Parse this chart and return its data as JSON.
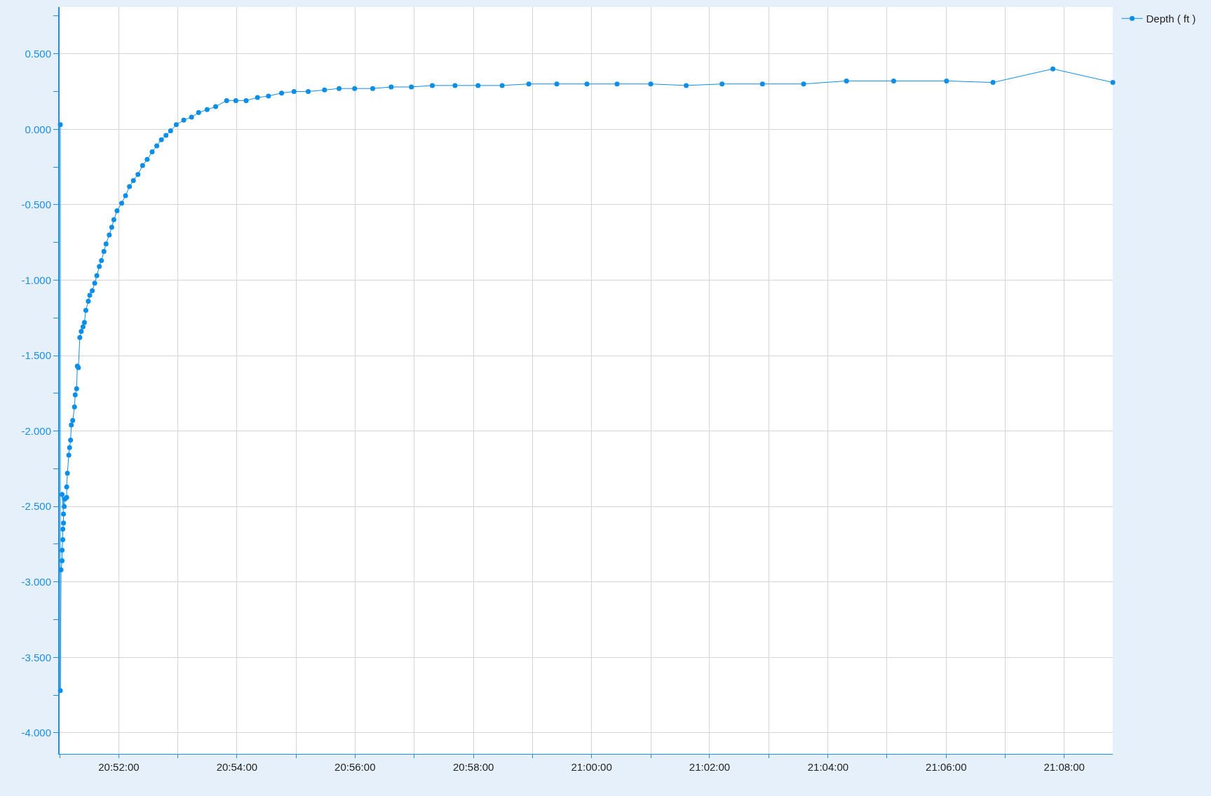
{
  "chart_data": {
    "type": "line",
    "marker": "circle",
    "line_style": "solid",
    "grid": true,
    "legend": "top right",
    "x": [
      20.8502,
      20.8502,
      20.8504,
      20.8507,
      20.8507,
      20.8509,
      20.8509,
      20.8511,
      20.8511,
      20.8507,
      20.8513,
      20.8515,
      20.852,
      20.852,
      20.8522,
      20.8526,
      20.8528,
      20.8531,
      20.8533,
      20.8537,
      20.8542,
      20.8544,
      20.8548,
      20.855,
      20.8553,
      20.8557,
      20.8561,
      20.8566,
      20.857,
      20.8574,
      20.8581,
      20.8585,
      20.8592,
      20.8599,
      20.8605,
      20.8612,
      20.8618,
      20.8625,
      20.8631,
      20.864,
      20.8647,
      20.8653,
      20.8662,
      20.8675,
      20.8686,
      20.8697,
      20.8708,
      20.8721,
      20.8734,
      20.8747,
      20.8761,
      20.8774,
      20.8787,
      20.88,
      20.8813,
      20.8829,
      20.885,
      20.8872,
      20.8892,
      20.8916,
      20.894,
      20.8971,
      20.8997,
      20.9026,
      20.9058,
      20.9089,
      20.9126,
      20.9161,
      20.9201,
      20.9247,
      20.9288,
      20.9332,
      20.9383,
      20.9435,
      20.9492,
      20.9551,
      20.9615,
      20.968,
      20.9748,
      20.9823,
      20.9902,
      20.9987,
      21.0072,
      21.0167,
      21.0267,
      21.0368,
      21.0482,
      21.0598,
      21.0719,
      21.0852,
      21.1001,
      21.1132,
      21.1301,
      21.147
    ],
    "series": [
      {
        "name": "Depth ( ft )",
        "color": "#0a8ee8",
        "values": [
          0.03,
          -3.72,
          -2.92,
          -2.86,
          -2.79,
          -2.72,
          -2.65,
          -2.61,
          -2.55,
          -2.42,
          -2.5,
          -2.45,
          -2.44,
          -2.37,
          -2.28,
          -2.16,
          -2.11,
          -2.06,
          -1.96,
          -1.93,
          -1.84,
          -1.76,
          -1.72,
          -1.57,
          -1.58,
          -1.38,
          -1.34,
          -1.31,
          -1.28,
          -1.2,
          -1.14,
          -1.1,
          -1.07,
          -1.02,
          -0.97,
          -0.91,
          -0.87,
          -0.81,
          -0.76,
          -0.7,
          -0.65,
          -0.6,
          -0.54,
          -0.49,
          -0.44,
          -0.38,
          -0.34,
          -0.3,
          -0.24,
          -0.2,
          -0.15,
          -0.11,
          -0.07,
          -0.04,
          -0.01,
          0.03,
          0.06,
          0.08,
          0.11,
          0.13,
          0.15,
          0.19,
          0.19,
          0.19,
          0.21,
          0.22,
          0.24,
          0.25,
          0.25,
          0.26,
          0.27,
          0.27,
          0.27,
          0.28,
          0.28,
          0.29,
          0.29,
          0.29,
          0.29,
          0.3,
          0.3,
          0.3,
          0.3,
          0.3,
          0.29,
          0.3,
          0.3,
          0.3,
          0.32,
          0.32,
          0.32,
          0.31,
          0.4,
          0.31
        ]
      }
    ],
    "xlim": [
      20.85,
      21.147
    ],
    "xticks": [
      {
        "value": 20.85,
        "label": null
      },
      {
        "value": 20.8667,
        "label": "20:52:00"
      },
      {
        "value": 20.8833,
        "label": null
      },
      {
        "value": 20.9,
        "label": "20:54:00"
      },
      {
        "value": 20.9167,
        "label": null
      },
      {
        "value": 20.9333,
        "label": "20:56:00"
      },
      {
        "value": 20.95,
        "label": null
      },
      {
        "value": 20.9667,
        "label": "20:58:00"
      },
      {
        "value": 20.9833,
        "label": null
      },
      {
        "value": 21.0,
        "label": "21:00:00"
      },
      {
        "value": 21.0167,
        "label": null
      },
      {
        "value": 21.0333,
        "label": "21:02:00"
      },
      {
        "value": 21.05,
        "label": null
      },
      {
        "value": 21.0667,
        "label": "21:04:00"
      },
      {
        "value": 21.0833,
        "label": null
      },
      {
        "value": 21.1,
        "label": "21:06:00"
      },
      {
        "value": 21.1167,
        "label": null
      },
      {
        "value": 21.1333,
        "label": "21:08:00"
      }
    ],
    "ylim": [
      -4.14,
      0.81
    ],
    "yticks": [
      {
        "value": -4,
        "label": "-4.000"
      },
      {
        "value": -3.75,
        "label": null
      },
      {
        "value": -3.5,
        "label": "-3.500"
      },
      {
        "value": -3.25,
        "label": null
      },
      {
        "value": -3,
        "label": "-3.000"
      },
      {
        "value": -2.75,
        "label": null
      },
      {
        "value": -2.5,
        "label": "-2.500"
      },
      {
        "value": -2.25,
        "label": null
      },
      {
        "value": -2,
        "label": "-2.000"
      },
      {
        "value": -1.75,
        "label": null
      },
      {
        "value": -1.5,
        "label": "-1.500"
      },
      {
        "value": -1.25,
        "label": null
      },
      {
        "value": -1,
        "label": "-1.000"
      },
      {
        "value": -0.75,
        "label": null
      },
      {
        "value": -0.5,
        "label": "-0.500"
      },
      {
        "value": -0.25,
        "label": null
      },
      {
        "value": 0,
        "label": "0.000"
      },
      {
        "value": 0.25,
        "label": null
      },
      {
        "value": 0.5,
        "label": "0.500"
      },
      {
        "value": 0.75,
        "label": null
      }
    ]
  }
}
